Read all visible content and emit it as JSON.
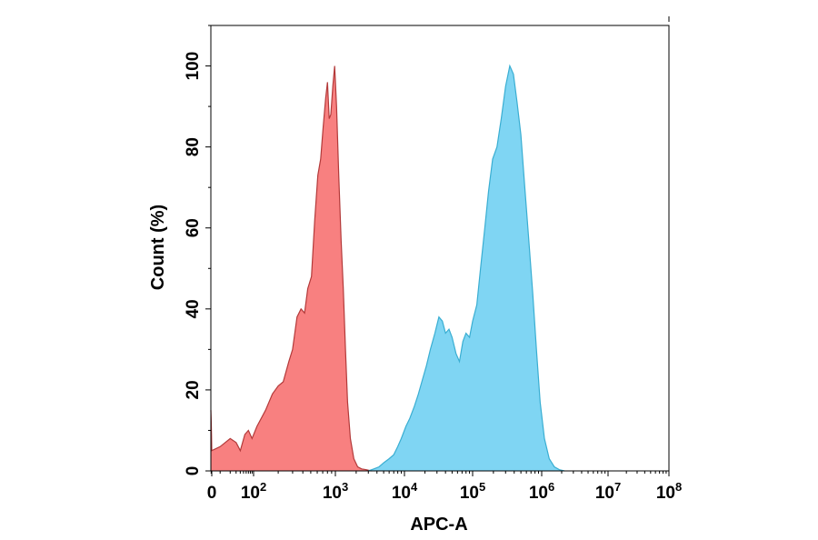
{
  "chart_data": {
    "type": "area",
    "title": "",
    "xlabel": "APC-A",
    "ylabel": "Count (%)",
    "x_scale": "biexponential (linear near 0, log10 above)",
    "xlim": [
      -30,
      100000000
    ],
    "ylim": [
      0,
      110
    ],
    "grid": false,
    "legend": "none",
    "x_ticks": [
      {
        "value": 0,
        "base": "0",
        "exp": ""
      },
      {
        "value": 100,
        "base": "10",
        "exp": "2"
      },
      {
        "value": 1000,
        "base": "10",
        "exp": "3"
      },
      {
        "value": 10000,
        "base": "10",
        "exp": "4"
      },
      {
        "value": 100000,
        "base": "10",
        "exp": "5"
      },
      {
        "value": 1000000,
        "base": "10",
        "exp": "6"
      },
      {
        "value": 10000000,
        "base": "10",
        "exp": "7"
      },
      {
        "value": 100000000,
        "base": "10",
        "exp": "8"
      }
    ],
    "y_ticks": [
      0,
      20,
      40,
      60,
      80,
      100
    ],
    "series": [
      {
        "color_fill": "#f88080",
        "color_line": "#b33a3a",
        "points": [
          [
            -30,
            15
          ],
          [
            -20,
            13
          ],
          [
            -10,
            9
          ],
          [
            0,
            5
          ],
          [
            10,
            6
          ],
          [
            20,
            8
          ],
          [
            30,
            7
          ],
          [
            40,
            5
          ],
          [
            55,
            9
          ],
          [
            70,
            10
          ],
          [
            90,
            8
          ],
          [
            110,
            11
          ],
          [
            140,
            15
          ],
          [
            170,
            19
          ],
          [
            200,
            21
          ],
          [
            230,
            22
          ],
          [
            270,
            27
          ],
          [
            300,
            30
          ],
          [
            340,
            38
          ],
          [
            380,
            40
          ],
          [
            420,
            39
          ],
          [
            460,
            45
          ],
          [
            510,
            48
          ],
          [
            560,
            62
          ],
          [
            610,
            73
          ],
          [
            660,
            77
          ],
          [
            710,
            85
          ],
          [
            760,
            92
          ],
          [
            800,
            96
          ],
          [
            840,
            87
          ],
          [
            880,
            88
          ],
          [
            930,
            95
          ],
          [
            980,
            100
          ],
          [
            1040,
            90
          ],
          [
            1120,
            73
          ],
          [
            1210,
            57
          ],
          [
            1300,
            45
          ],
          [
            1400,
            30
          ],
          [
            1500,
            17
          ],
          [
            1650,
            8
          ],
          [
            1850,
            3
          ],
          [
            2100,
            1
          ],
          [
            2400,
            0.5
          ],
          [
            2800,
            0.3
          ],
          [
            3300,
            0
          ]
        ]
      },
      {
        "color_fill": "#7fd5f3",
        "color_line": "#3aaed2",
        "points": [
          [
            3000,
            0
          ],
          [
            3600,
            0.5
          ],
          [
            4300,
            1
          ],
          [
            5000,
            2
          ],
          [
            6000,
            3
          ],
          [
            7000,
            4
          ],
          [
            8000,
            6
          ],
          [
            9000,
            8
          ],
          [
            10500,
            11
          ],
          [
            12000,
            13
          ],
          [
            14000,
            16
          ],
          [
            16000,
            19
          ],
          [
            18000,
            22
          ],
          [
            21000,
            26
          ],
          [
            24000,
            30
          ],
          [
            28000,
            34
          ],
          [
            32000,
            38
          ],
          [
            36000,
            37
          ],
          [
            40000,
            34
          ],
          [
            45000,
            35
          ],
          [
            50000,
            33
          ],
          [
            57000,
            29
          ],
          [
            64000,
            27
          ],
          [
            72000,
            32
          ],
          [
            80000,
            34
          ],
          [
            90000,
            33
          ],
          [
            100000,
            37
          ],
          [
            115000,
            41
          ],
          [
            130000,
            50
          ],
          [
            150000,
            60
          ],
          [
            170000,
            69
          ],
          [
            195000,
            77
          ],
          [
            225000,
            80
          ],
          [
            260000,
            87
          ],
          [
            300000,
            95
          ],
          [
            345000,
            100
          ],
          [
            390000,
            98
          ],
          [
            440000,
            91
          ],
          [
            500000,
            83
          ],
          [
            570000,
            70
          ],
          [
            650000,
            57
          ],
          [
            740000,
            44
          ],
          [
            840000,
            30
          ],
          [
            950000,
            17
          ],
          [
            1100000,
            8
          ],
          [
            1300000,
            3
          ],
          [
            1550000,
            1
          ],
          [
            1850000,
            0.3
          ],
          [
            2200000,
            0
          ]
        ]
      }
    ]
  }
}
